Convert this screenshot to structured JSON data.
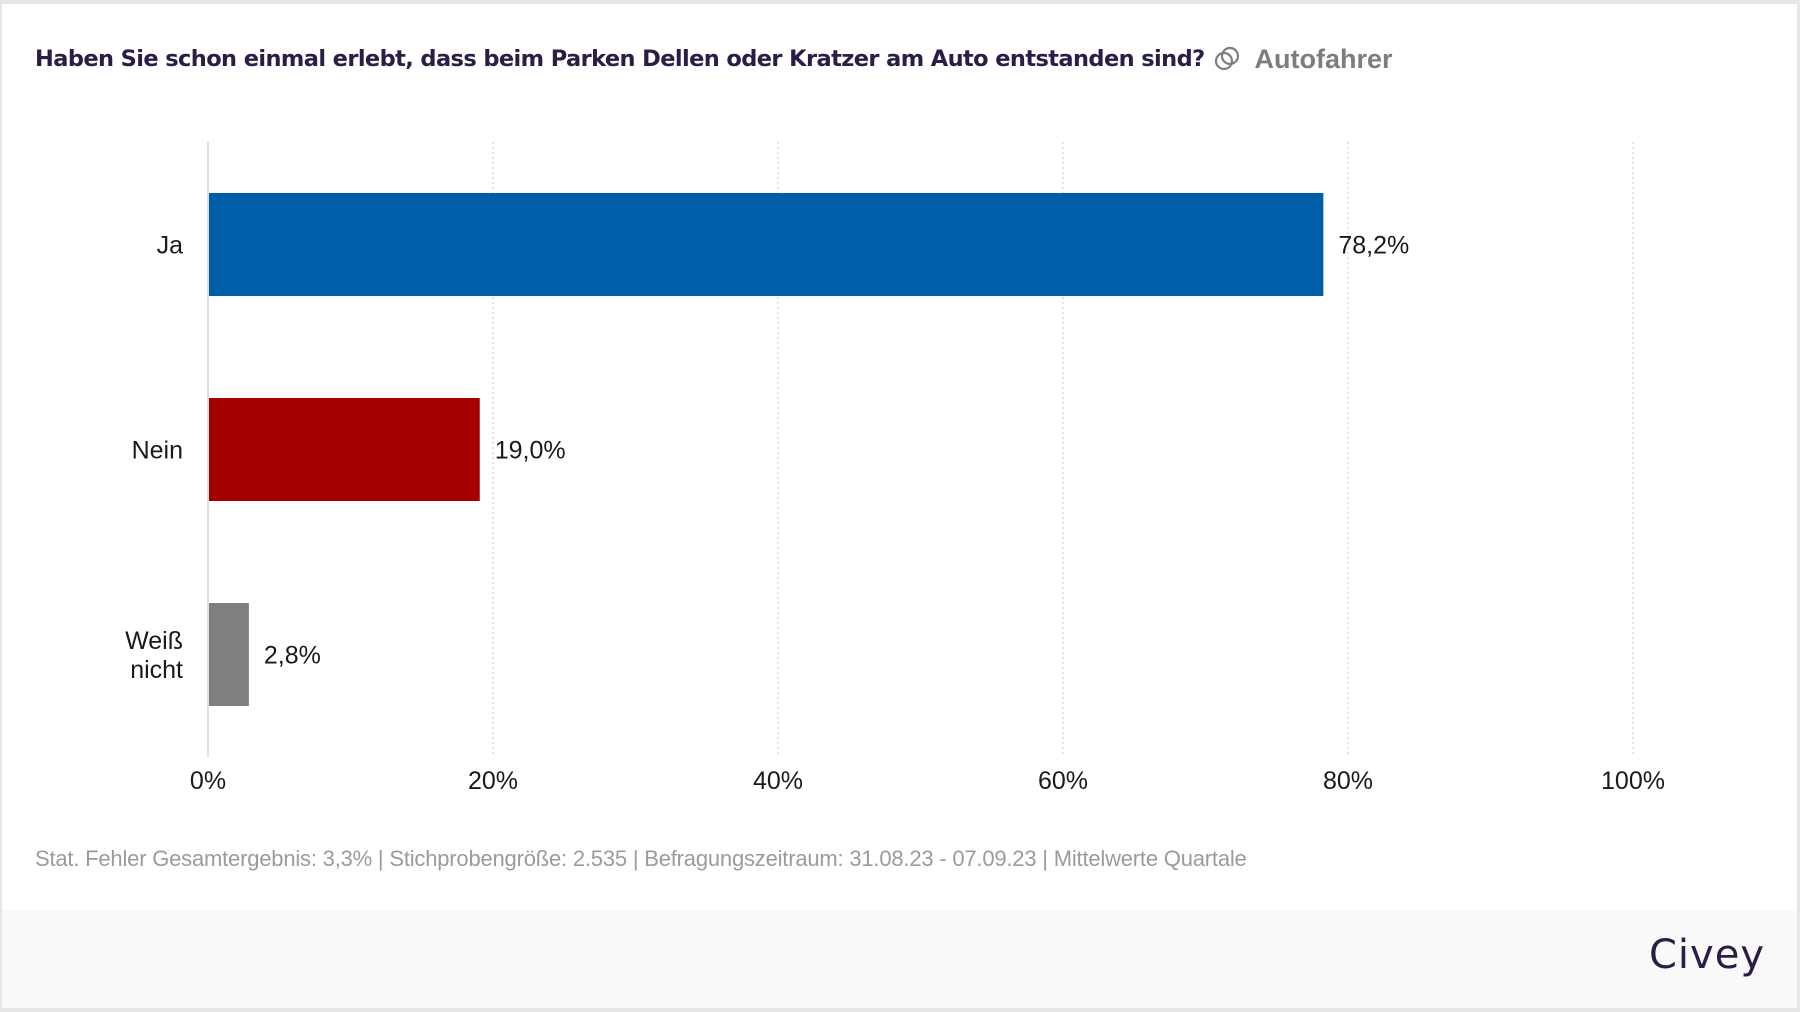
{
  "header": {
    "title": "Haben Sie schon einmal erlebt, dass beim Parken Dellen oder Kratzer am Auto entstanden sind?",
    "segment_icon": "segment-rings-icon",
    "segment": "Autofahrer"
  },
  "chart_data": {
    "type": "bar",
    "orientation": "horizontal",
    "title": "Haben Sie schon einmal erlebt, dass beim Parken Dellen oder Kratzer am Auto entstanden sind?",
    "categories": [
      {
        "lines": [
          "Ja"
        ],
        "label": "Ja"
      },
      {
        "lines": [
          "Nein"
        ],
        "label": "Nein"
      },
      {
        "lines": [
          "Weiß",
          "nicht"
        ],
        "label": "Weiß nicht"
      }
    ],
    "values": [
      78.2,
      19.0,
      2.8
    ],
    "value_labels": [
      "78,2%",
      "19,0%",
      "2,8%"
    ],
    "colors": [
      "#005ea8",
      "#a50000",
      "#7f7f7f"
    ],
    "xlim": [
      0,
      100
    ],
    "xticks": [
      0,
      20,
      40,
      60,
      80,
      100
    ],
    "xtick_labels": [
      "0%",
      "20%",
      "40%",
      "60%",
      "80%",
      "100%"
    ],
    "grid": true,
    "xlabel": "",
    "ylabel": ""
  },
  "footnote": "Stat. Fehler Gesamtergebnis: 3,3% | Stichprobengröße: 2.535 | Befragungszeitraum: 31.08.23 - 07.09.23 | Mittelwerte Quartale",
  "logo": "Civey",
  "colors": {
    "title": "#2b1d45",
    "segment": "#7d7d7d",
    "footnote": "#9b9b9b",
    "footer_band": "#f9f9f9"
  }
}
